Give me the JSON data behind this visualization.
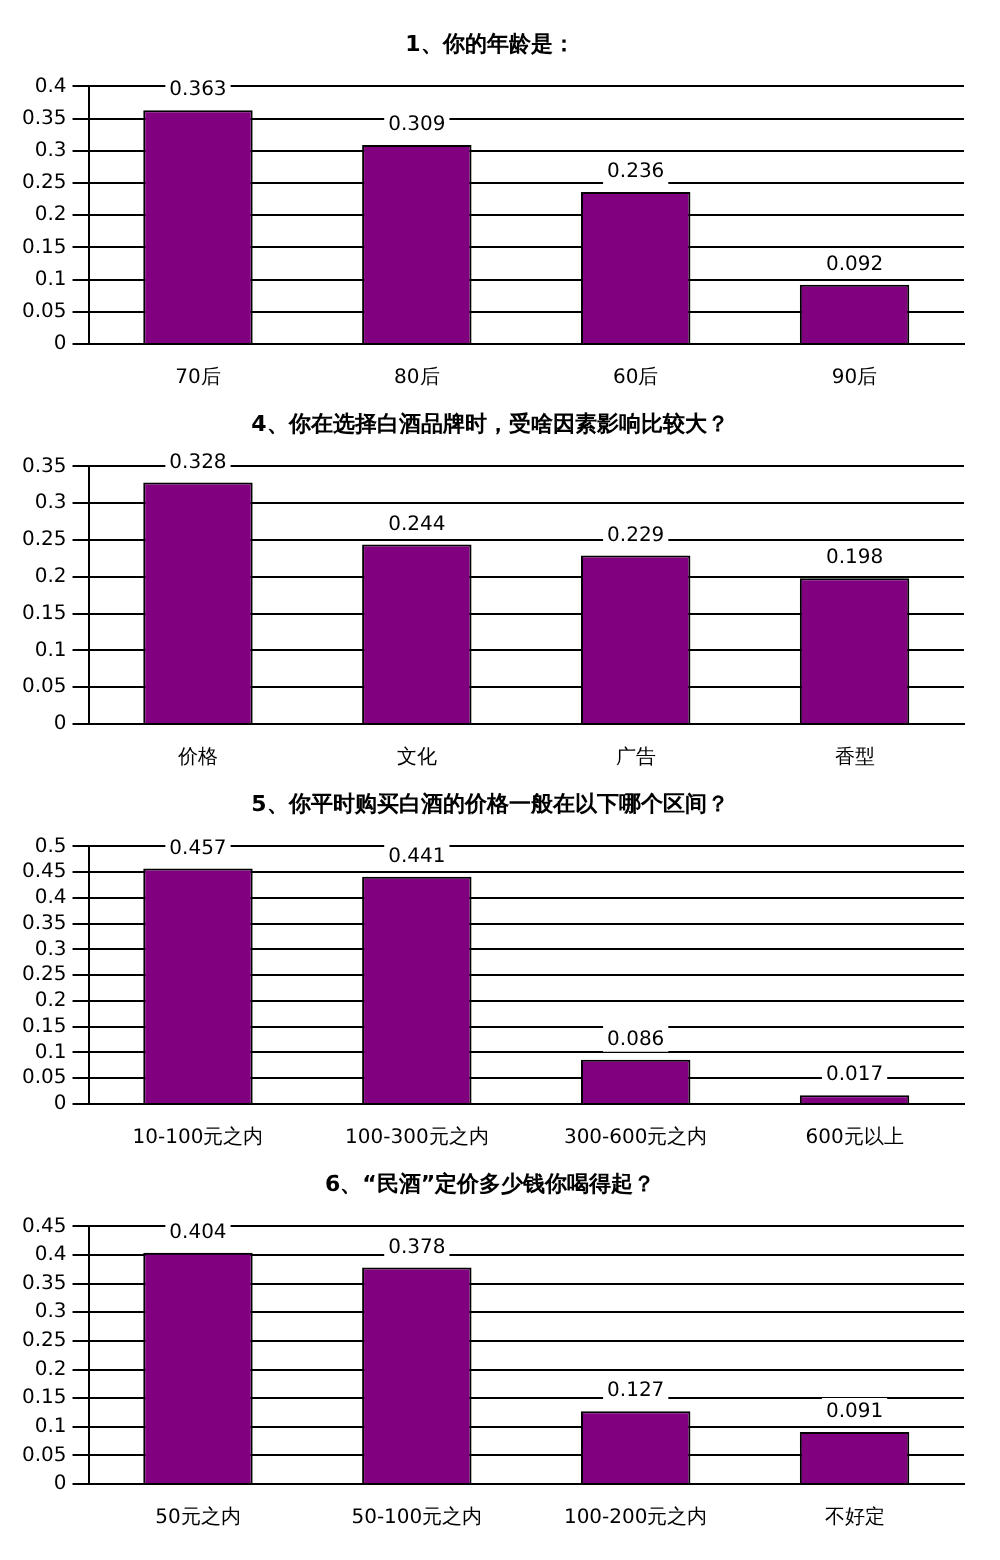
{
  "chart_data": [
    {
      "type": "bar",
      "title": "1、你的年龄是：",
      "categories": [
        "70后",
        "80后",
        "60后",
        "90后"
      ],
      "values": [
        0.363,
        0.309,
        0.236,
        0.092
      ],
      "color": "#800080",
      "ylim": [
        0,
        0.4
      ],
      "yticks": [
        0,
        0.05,
        0.1,
        0.15,
        0.2,
        0.25,
        0.3,
        0.35,
        0.4
      ],
      "grid": "y",
      "data_labels": true,
      "legend": false
    },
    {
      "type": "bar",
      "title": "4、你在选择白酒品牌时，受啥因素影响比较大？",
      "categories": [
        "价格",
        "文化",
        "广告",
        "香型"
      ],
      "values": [
        0.328,
        0.244,
        0.229,
        0.198
      ],
      "color": "#800080",
      "ylim": [
        0,
        0.35
      ],
      "yticks": [
        0,
        0.05,
        0.1,
        0.15,
        0.2,
        0.25,
        0.3,
        0.35
      ],
      "grid": "y",
      "data_labels": true,
      "legend": false
    },
    {
      "type": "bar",
      "title": "5、你平时购买白酒的价格一般在以下哪个区间？",
      "categories": [
        "10-100元之内",
        "100-300元之内",
        "300-600元之内",
        "600元以上"
      ],
      "values": [
        0.457,
        0.441,
        0.086,
        0.017
      ],
      "color": "#800080",
      "ylim": [
        0,
        0.5
      ],
      "yticks": [
        0,
        0.05,
        0.1,
        0.15,
        0.2,
        0.25,
        0.3,
        0.35,
        0.4,
        0.45,
        0.5
      ],
      "grid": "y",
      "data_labels": true,
      "legend": false
    },
    {
      "type": "bar",
      "title": "6、“民酒”定价多少钱你喝得起？",
      "categories": [
        "50元之内",
        "50-100元之内",
        "100-200元之内",
        "不好定"
      ],
      "values": [
        0.404,
        0.378,
        0.127,
        0.091
      ],
      "color": "#800080",
      "ylim": [
        0,
        0.45
      ],
      "yticks": [
        0,
        0.05,
        0.1,
        0.15,
        0.2,
        0.25,
        0.3,
        0.35,
        0.4,
        0.45
      ],
      "grid": "y",
      "data_labels": true,
      "legend": false
    }
  ]
}
